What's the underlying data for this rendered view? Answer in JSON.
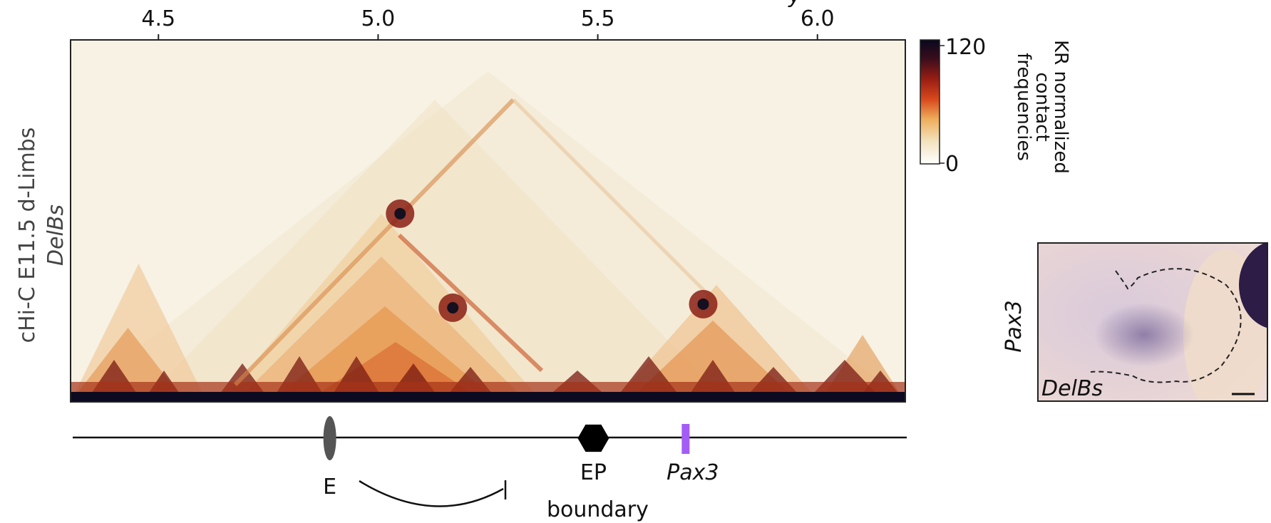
{
  "xaxis": {
    "ticks": [
      {
        "value": 4.5,
        "label": "4.5"
      },
      {
        "value": 5.0,
        "label": "5.0"
      },
      {
        "value": 5.5,
        "label": "5.5"
      },
      {
        "value": 6.0,
        "label": "6.0"
      }
    ],
    "range": [
      4.3,
      6.2
    ],
    "partial_title_fragment": "y"
  },
  "sample_label": {
    "line1": "cHi-C E11.5 d-Limbs",
    "line2": "DelBs"
  },
  "colorbar": {
    "max_label": "120",
    "min_label": "0",
    "title_lines": [
      "KR normalized",
      "contact",
      "frequencies"
    ],
    "colors": [
      "#ffffff",
      "#f3e3bf",
      "#eeae5c",
      "#d8491c",
      "#9b1e13",
      "#3a0d1c",
      "#08081e"
    ],
    "range": [
      0,
      120
    ]
  },
  "features": {
    "enhancer_label": "E",
    "boundary_label_1": "EP",
    "boundary_label_2": "boundary",
    "gene_label": "Pax3",
    "enhancer_position": 4.89,
    "boundary_position": 5.49,
    "gene_position": 5.7,
    "gene_color": "#a35cf5",
    "boundary_color": "#000000",
    "enhancer_color": "#555555"
  },
  "insert": {
    "side_label": "Pax3",
    "sample_label": "DelBs"
  },
  "heatmap": {
    "domain_peaks": [
      {
        "position": 5.05,
        "height": 0.52
      },
      {
        "position": 5.17,
        "height": 0.26
      },
      {
        "position": 5.74,
        "height": 0.27
      }
    ]
  }
}
